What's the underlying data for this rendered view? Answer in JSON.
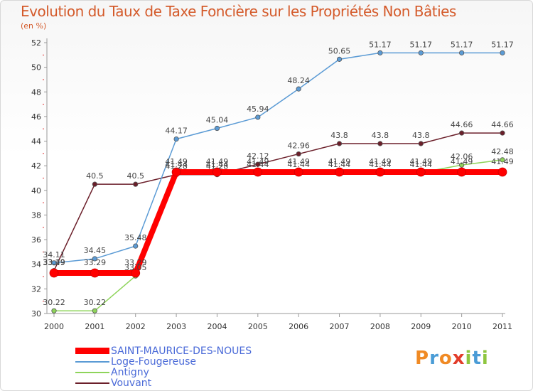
{
  "chart_data": {
    "type": "line",
    "title": "Evolution du Taux de Taxe Foncière sur les Propriétés Non Bâties",
    "unit_label": "(en %)",
    "xlabel": "",
    "ylabel": "(en %)",
    "x": [
      "2000",
      "2001",
      "2002",
      "2003",
      "2004",
      "2005",
      "2006",
      "2007",
      "2008",
      "2009",
      "2010",
      "2011"
    ],
    "ylim": [
      30,
      52
    ],
    "yticks": [
      30,
      32,
      34,
      36,
      38,
      40,
      42,
      44,
      46,
      48,
      50,
      52
    ],
    "grid": false,
    "legend_position": "bottom-left",
    "series": [
      {
        "name": "SAINT-MAURICE-DES-NOUES",
        "color": "#ff0000",
        "values": [
          33.29,
          33.29,
          33.29,
          41.49,
          41.49,
          41.49,
          41.49,
          41.49,
          41.49,
          41.49,
          41.49,
          41.49
        ],
        "labels": [
          "33.29",
          "33.29",
          "33.29",
          "41.49",
          "41.49",
          "41.49",
          "41.49",
          "41.49",
          "41.49",
          "41.49",
          "41.49",
          "41.49"
        ]
      },
      {
        "name": "Loge-Fougereuse",
        "color": "#5b9bd5",
        "values": [
          34.11,
          34.45,
          35.48,
          44.17,
          45.04,
          45.94,
          48.24,
          50.65,
          51.17,
          51.17,
          51.17,
          51.17
        ],
        "labels": [
          "34.11",
          "34.45",
          "35.48",
          "44.17",
          "45.04",
          "45.94",
          "48.24",
          "50.65",
          "51.17",
          "51.17",
          "51.17",
          "51.17"
        ]
      },
      {
        "name": "Antigny",
        "color": "#8ed45a",
        "values": [
          30.22,
          30.22,
          33.05,
          41.44,
          41.44,
          41.44,
          41.44,
          41.44,
          41.44,
          41.44,
          42.06,
          42.48
        ],
        "labels": [
          "30.22",
          "30.22",
          "33.05",
          "41.44",
          "41.44",
          "41.44",
          "41.44",
          "41.44",
          "41.44",
          "41.44",
          "42.06",
          "42.48"
        ]
      },
      {
        "name": "Vouvant",
        "color": "#6b1f2a",
        "values": [
          33.49,
          40.5,
          40.5,
          41.28,
          41.28,
          42.12,
          42.96,
          43.8,
          43.8,
          43.8,
          44.66,
          44.66
        ],
        "labels": [
          "33.49",
          "40.5",
          "40.5",
          "41.28",
          "41.28",
          "42.12",
          "42.96",
          "43.8",
          "43.8",
          "43.8",
          "44.66",
          "44.66"
        ]
      }
    ]
  },
  "legend": {
    "items": [
      {
        "label": "SAINT-MAURICE-DES-NOUES",
        "color": "#ff0000"
      },
      {
        "label": "Loge-Fougereuse",
        "color": "#5b9bd5"
      },
      {
        "label": "Antigny",
        "color": "#8ed45a"
      },
      {
        "label": "Vouvant",
        "color": "#6b1f2a"
      }
    ]
  },
  "branding": {
    "text": "Proxiti",
    "colors": [
      "#f08a24",
      "#4a9cd6",
      "#f08a24",
      "#e23c2a",
      "#8ec63f",
      "#4a9cd6",
      "#8ec63f"
    ]
  }
}
